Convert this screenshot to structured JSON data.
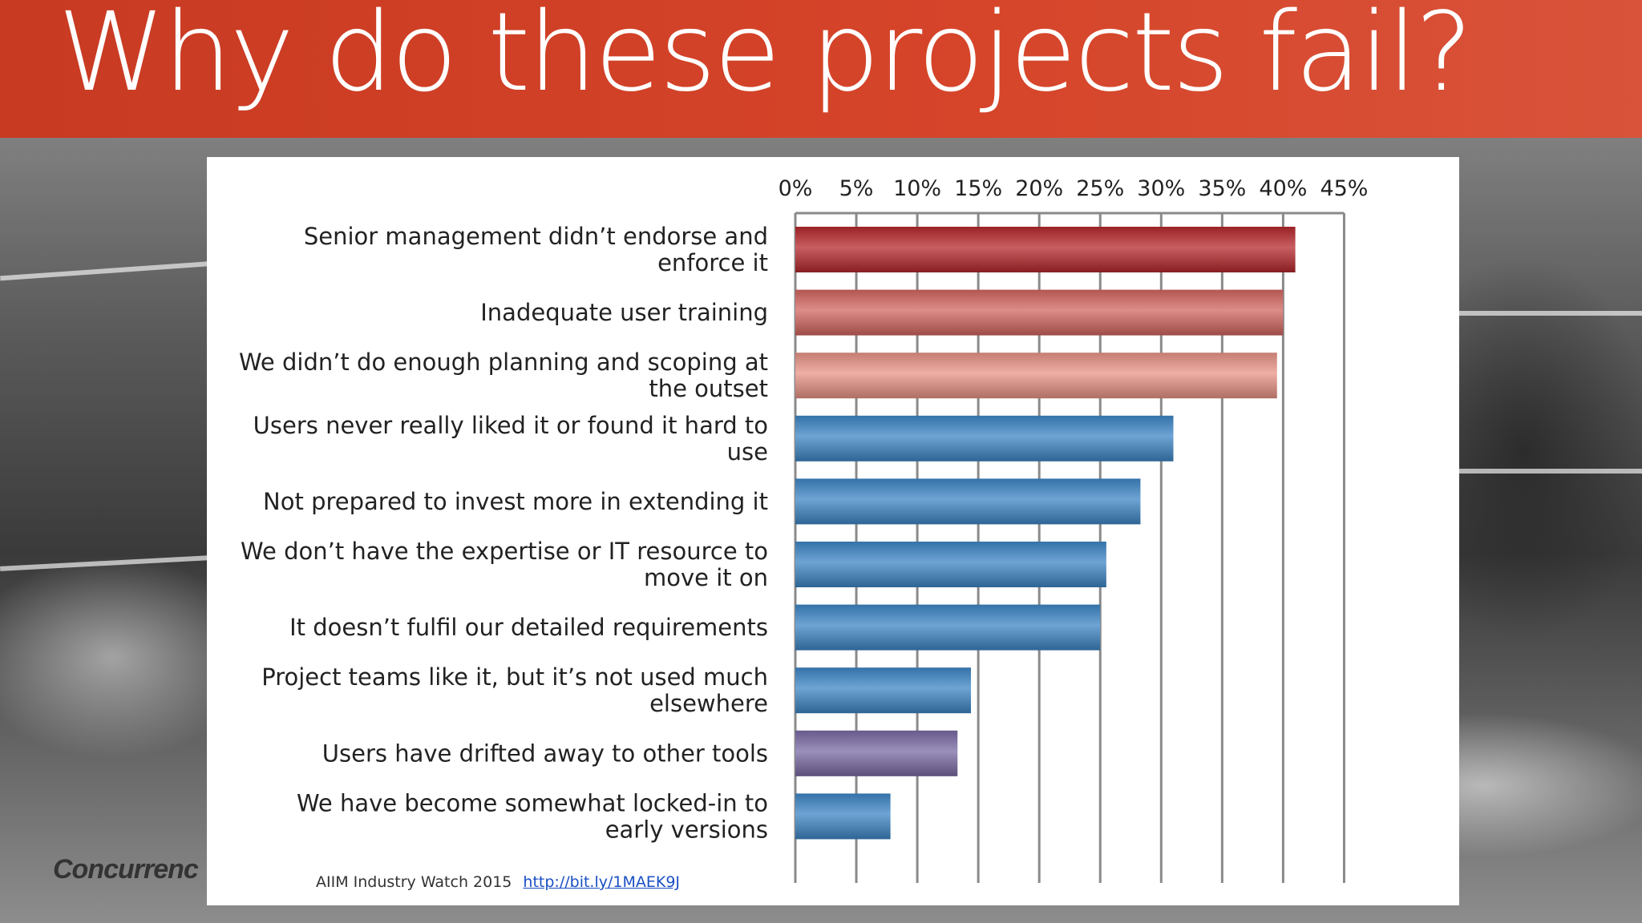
{
  "slide": {
    "title": "Why do these projects fail?",
    "logo_text": "Concurrenc",
    "source_text": "AIIM Industry Watch 2015",
    "source_link": "http://bit.ly/1MAEK9J"
  },
  "colors": {
    "header": "#d6452a",
    "dark_red": "#b5282c",
    "red": "#d26560",
    "salmon": "#e89386",
    "blue": "#3d86c6",
    "purple": "#7a6aa4"
  },
  "chart_data": {
    "type": "bar",
    "orientation": "horizontal",
    "title": "",
    "xlabel": "",
    "ylabel": "",
    "xlim": [
      0,
      45
    ],
    "x_ticks": [
      "0%",
      "5%",
      "10%",
      "15%",
      "20%",
      "25%",
      "30%",
      "35%",
      "40%",
      "45%"
    ],
    "tick_position": "top",
    "grid": true,
    "legend": false,
    "categories": [
      [
        "Senior management didn’t endorse and",
        "enforce it"
      ],
      [
        "Inadequate user training"
      ],
      [
        "We didn’t do enough planning and scoping at",
        "the outset"
      ],
      [
        "Users never really liked it or found it hard to",
        "use"
      ],
      [
        "Not prepared to invest more in extending it"
      ],
      [
        "We don’t have the expertise or IT resource to",
        "move it on"
      ],
      [
        "It doesn’t fulfil our detailed requirements"
      ],
      [
        "Project teams like it, but it’s not used much",
        "elsewhere"
      ],
      [
        "Users have drifted away to other tools"
      ],
      [
        "We have become somewhat locked-in to",
        "early versions"
      ]
    ],
    "values": [
      41,
      40,
      39.5,
      31,
      28.3,
      25.5,
      25,
      14.4,
      13.3,
      7.8
    ],
    "bar_colors": [
      "dark_red",
      "red",
      "salmon",
      "blue",
      "blue",
      "blue",
      "blue",
      "blue",
      "purple",
      "blue"
    ]
  }
}
